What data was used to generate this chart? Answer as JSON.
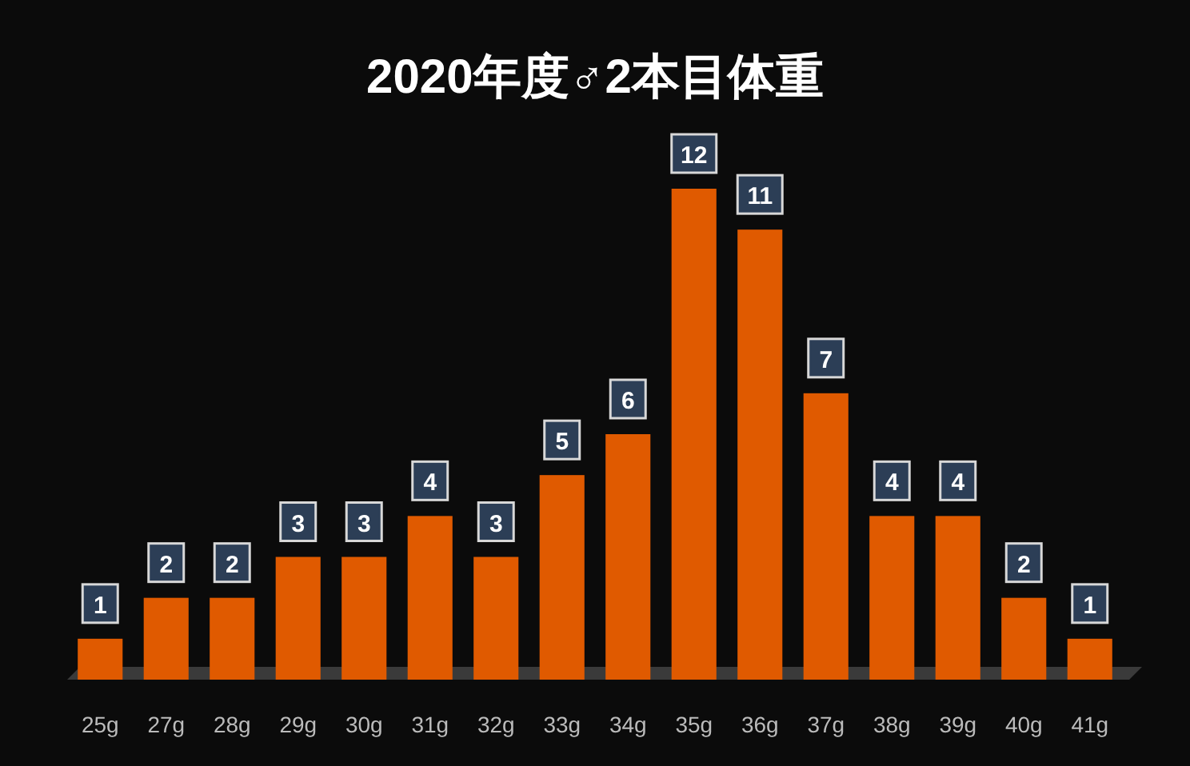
{
  "chart_data": {
    "type": "bar",
    "title": "2020年度♂2本目体重",
    "categories": [
      "25g",
      "27g",
      "28g",
      "29g",
      "30g",
      "31g",
      "32g",
      "33g",
      "34g",
      "35g",
      "36g",
      "37g",
      "38g",
      "39g",
      "40g",
      "41g"
    ],
    "values": [
      1,
      2,
      2,
      3,
      3,
      4,
      3,
      5,
      6,
      12,
      11,
      7,
      4,
      4,
      2,
      1
    ],
    "color": "#e05a00",
    "data_labels": true
  }
}
